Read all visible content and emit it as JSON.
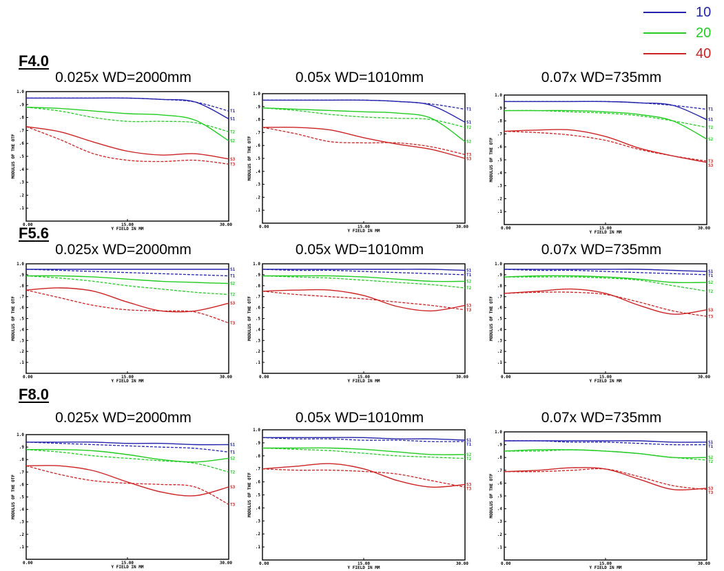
{
  "legend": [
    {
      "label": "10",
      "color": "#2222aa"
    },
    {
      "label": "20",
      "color": "#22cc22"
    },
    {
      "label": "40",
      "color": "#cc2222"
    }
  ],
  "rows": [
    {
      "title": "F4.0",
      "charts": [
        {
          "title": "0.025x WD=2000mm"
        },
        {
          "title": "0.05x WD=1010mm"
        },
        {
          "title": "0.07x WD=735mm"
        }
      ]
    },
    {
      "title": "F5.6",
      "charts": [
        {
          "title": "0.025x WD=2000mm"
        },
        {
          "title": "0.05x WD=1010mm"
        },
        {
          "title": "0.07x WD=735mm"
        }
      ]
    },
    {
      "title": "F8.0",
      "charts": [
        {
          "title": "0.025x WD=2000mm"
        },
        {
          "title": "0.05x WD=1010mm"
        },
        {
          "title": "0.07x WD=735mm"
        }
      ]
    }
  ],
  "axes": {
    "ylabel": "MODULUS OF THE OTF",
    "xlabel": "Y FIELD IN  MM",
    "yticks": [
      "1.0",
      ".9",
      ".8",
      ".7",
      ".6",
      ".5",
      ".4",
      ".3",
      ".2",
      ".1"
    ],
    "xticks": [
      "0.00",
      "15.00",
      "30.00"
    ]
  },
  "chart_data": [
    {
      "type": "line",
      "title": "0.025x WD=2000mm",
      "group": "F4.0",
      "xlabel": "Y FIELD IN  MM",
      "ylabel": "MODULUS OF THE OTF",
      "xlim": [
        0,
        30
      ],
      "ylim": [
        0,
        1
      ],
      "x": [
        0,
        5,
        10,
        15,
        20,
        25,
        30
      ],
      "series": [
        {
          "name": "10",
          "color": "#2222aa",
          "sagittal": [
            0.95,
            0.95,
            0.95,
            0.95,
            0.94,
            0.92,
            0.79
          ],
          "tangential": [
            0.95,
            0.95,
            0.95,
            0.95,
            0.94,
            0.92,
            0.85
          ],
          "labels": [
            "S1",
            "T1"
          ]
        },
        {
          "name": "20",
          "color": "#22cc22",
          "sagittal": [
            0.88,
            0.87,
            0.85,
            0.83,
            0.82,
            0.78,
            0.62
          ],
          "tangential": [
            0.88,
            0.85,
            0.8,
            0.77,
            0.77,
            0.76,
            0.69
          ],
          "labels": [
            "S2",
            "T2"
          ]
        },
        {
          "name": "40",
          "color": "#cc2222",
          "sagittal": [
            0.73,
            0.69,
            0.61,
            0.54,
            0.51,
            0.52,
            0.48
          ],
          "tangential": [
            0.73,
            0.63,
            0.52,
            0.47,
            0.46,
            0.47,
            0.44
          ],
          "labels": [
            "S3",
            "T3"
          ]
        }
      ]
    },
    {
      "type": "line",
      "title": "0.05x WD=1010mm",
      "group": "F4.0",
      "xlabel": "Y FIELD IN  MM",
      "ylabel": "MODULUS OF THE OTF",
      "xlim": [
        0,
        30
      ],
      "ylim": [
        0,
        1
      ],
      "x": [
        0,
        5,
        10,
        15,
        20,
        25,
        30
      ],
      "series": [
        {
          "name": "10",
          "color": "#2222aa",
          "sagittal": [
            0.95,
            0.95,
            0.95,
            0.95,
            0.94,
            0.91,
            0.78
          ],
          "tangential": [
            0.95,
            0.95,
            0.95,
            0.95,
            0.94,
            0.92,
            0.88
          ],
          "labels": [
            "S1",
            "T1"
          ]
        },
        {
          "name": "20",
          "color": "#22cc22",
          "sagittal": [
            0.89,
            0.88,
            0.87,
            0.86,
            0.85,
            0.81,
            0.63
          ],
          "tangential": [
            0.89,
            0.87,
            0.84,
            0.82,
            0.81,
            0.8,
            0.74
          ],
          "labels": [
            "S2",
            "T2"
          ]
        },
        {
          "name": "40",
          "color": "#cc2222",
          "sagittal": [
            0.74,
            0.74,
            0.72,
            0.66,
            0.61,
            0.57,
            0.5
          ],
          "tangential": [
            0.74,
            0.69,
            0.63,
            0.62,
            0.62,
            0.59,
            0.53
          ],
          "labels": [
            "S3",
            "T3"
          ]
        }
      ]
    },
    {
      "type": "line",
      "title": "0.07x WD=735mm",
      "group": "F4.0",
      "xlabel": "Y FIELD IN  MM",
      "ylabel": "MODULUS OF THE OTF",
      "xlim": [
        0,
        30
      ],
      "ylim": [
        0,
        1
      ],
      "x": [
        0,
        5,
        10,
        15,
        20,
        25,
        30
      ],
      "series": [
        {
          "name": "10",
          "color": "#2222aa",
          "sagittal": [
            0.95,
            0.95,
            0.95,
            0.95,
            0.94,
            0.92,
            0.81
          ],
          "tangential": [
            0.95,
            0.95,
            0.95,
            0.95,
            0.94,
            0.92,
            0.89
          ],
          "labels": [
            "S1",
            "T1"
          ]
        },
        {
          "name": "20",
          "color": "#22cc22",
          "sagittal": [
            0.88,
            0.88,
            0.88,
            0.87,
            0.85,
            0.8,
            0.66
          ],
          "tangential": [
            0.88,
            0.88,
            0.87,
            0.86,
            0.84,
            0.8,
            0.75
          ],
          "labels": [
            "S2",
            "T2"
          ]
        },
        {
          "name": "40",
          "color": "#cc2222",
          "sagittal": [
            0.72,
            0.73,
            0.73,
            0.68,
            0.59,
            0.53,
            0.48
          ],
          "tangential": [
            0.72,
            0.71,
            0.69,
            0.65,
            0.58,
            0.53,
            0.49
          ],
          "labels": [
            "S3",
            "T3"
          ]
        }
      ]
    },
    {
      "type": "line",
      "title": "0.025x WD=2000mm",
      "group": "F5.6",
      "xlabel": "Y FIELD IN  MM",
      "ylabel": "MODULUS OF THE OTF",
      "xlim": [
        0,
        30
      ],
      "ylim": [
        0,
        1
      ],
      "x": [
        0,
        5,
        10,
        15,
        20,
        25,
        30
      ],
      "series": [
        {
          "name": "10",
          "color": "#2222aa",
          "sagittal": [
            0.95,
            0.95,
            0.95,
            0.95,
            0.95,
            0.95,
            0.95
          ],
          "tangential": [
            0.95,
            0.94,
            0.93,
            0.92,
            0.91,
            0.9,
            0.89
          ],
          "labels": [
            "S1",
            "T1"
          ]
        },
        {
          "name": "20",
          "color": "#22cc22",
          "sagittal": [
            0.89,
            0.89,
            0.88,
            0.86,
            0.84,
            0.83,
            0.82
          ],
          "tangential": [
            0.89,
            0.87,
            0.84,
            0.8,
            0.77,
            0.74,
            0.72
          ],
          "labels": [
            "S2",
            "T2"
          ]
        },
        {
          "name": "40",
          "color": "#cc2222",
          "sagittal": [
            0.76,
            0.78,
            0.75,
            0.65,
            0.57,
            0.57,
            0.64
          ],
          "tangential": [
            0.76,
            0.69,
            0.62,
            0.58,
            0.57,
            0.56,
            0.46
          ],
          "labels": [
            "S3",
            "T3"
          ]
        }
      ]
    },
    {
      "type": "line",
      "title": "0.05x WD=1010mm",
      "group": "F5.6",
      "xlabel": "Y FIELD IN  MM",
      "ylabel": "MODULUS OF THE OTF",
      "xlim": [
        0,
        30
      ],
      "ylim": [
        0,
        1
      ],
      "x": [
        0,
        5,
        10,
        15,
        20,
        25,
        30
      ],
      "series": [
        {
          "name": "10",
          "color": "#2222aa",
          "sagittal": [
            0.95,
            0.95,
            0.95,
            0.95,
            0.95,
            0.95,
            0.94
          ],
          "tangential": [
            0.95,
            0.94,
            0.94,
            0.93,
            0.92,
            0.91,
            0.9
          ],
          "labels": [
            "S1",
            "T1"
          ]
        },
        {
          "name": "20",
          "color": "#22cc22",
          "sagittal": [
            0.89,
            0.89,
            0.89,
            0.88,
            0.86,
            0.84,
            0.84
          ],
          "tangential": [
            0.89,
            0.88,
            0.87,
            0.85,
            0.83,
            0.81,
            0.78
          ],
          "labels": [
            "S2",
            "T2"
          ]
        },
        {
          "name": "40",
          "color": "#cc2222",
          "sagittal": [
            0.75,
            0.76,
            0.76,
            0.71,
            0.61,
            0.57,
            0.62
          ],
          "tangential": [
            0.75,
            0.72,
            0.7,
            0.68,
            0.65,
            0.62,
            0.58
          ],
          "labels": [
            "S3",
            "T3"
          ]
        }
      ]
    },
    {
      "type": "line",
      "title": "0.07x WD=735mm",
      "group": "F5.6",
      "xlabel": "Y FIELD IN  MM",
      "ylabel": "MODULUS OF THE OTF",
      "xlim": [
        0,
        30
      ],
      "ylim": [
        0,
        1
      ],
      "x": [
        0,
        5,
        10,
        15,
        20,
        25,
        30
      ],
      "series": [
        {
          "name": "10",
          "color": "#2222aa",
          "sagittal": [
            0.95,
            0.95,
            0.95,
            0.95,
            0.95,
            0.94,
            0.93
          ],
          "tangential": [
            0.95,
            0.94,
            0.94,
            0.93,
            0.92,
            0.91,
            0.9
          ],
          "labels": [
            "S1",
            "T1"
          ]
        },
        {
          "name": "20",
          "color": "#22cc22",
          "sagittal": [
            0.88,
            0.89,
            0.89,
            0.88,
            0.86,
            0.83,
            0.83
          ],
          "tangential": [
            0.88,
            0.88,
            0.88,
            0.87,
            0.85,
            0.8,
            0.75
          ],
          "labels": [
            "S2",
            "T2"
          ]
        },
        {
          "name": "40",
          "color": "#cc2222",
          "sagittal": [
            0.73,
            0.75,
            0.77,
            0.73,
            0.62,
            0.54,
            0.58
          ],
          "tangential": [
            0.73,
            0.74,
            0.74,
            0.72,
            0.65,
            0.57,
            0.52
          ],
          "labels": [
            "S3",
            "T3"
          ]
        }
      ]
    },
    {
      "type": "line",
      "title": "0.025x WD=2000mm",
      "group": "F8.0",
      "xlabel": "Y FIELD IN  MM",
      "ylabel": "MODULUS OF THE OTF",
      "xlim": [
        0,
        30
      ],
      "ylim": [
        0,
        1
      ],
      "x": [
        0,
        5,
        10,
        15,
        20,
        25,
        30
      ],
      "series": [
        {
          "name": "10",
          "color": "#2222aa",
          "sagittal": [
            0.94,
            0.94,
            0.94,
            0.93,
            0.93,
            0.92,
            0.92
          ],
          "tangential": [
            0.94,
            0.93,
            0.92,
            0.91,
            0.9,
            0.89,
            0.86
          ],
          "labels": [
            "S1",
            "T1"
          ]
        },
        {
          "name": "20",
          "color": "#22cc22",
          "sagittal": [
            0.88,
            0.88,
            0.87,
            0.84,
            0.8,
            0.78,
            0.81
          ],
          "tangential": [
            0.88,
            0.86,
            0.83,
            0.81,
            0.79,
            0.77,
            0.7
          ],
          "labels": [
            "S2",
            "T2"
          ]
        },
        {
          "name": "40",
          "color": "#cc2222",
          "sagittal": [
            0.75,
            0.75,
            0.71,
            0.62,
            0.54,
            0.51,
            0.58
          ],
          "tangential": [
            0.75,
            0.68,
            0.63,
            0.61,
            0.6,
            0.58,
            0.44
          ],
          "labels": [
            "S3",
            "T3"
          ]
        }
      ]
    },
    {
      "type": "line",
      "title": "0.05x WD=1010mm",
      "group": "F8.0",
      "xlabel": "Y FIELD IN  MM",
      "ylabel": "MODULUS OF THE OTF",
      "xlim": [
        0,
        30
      ],
      "ylim": [
        0,
        1
      ],
      "x": [
        0,
        5,
        10,
        15,
        20,
        25,
        30
      ],
      "series": [
        {
          "name": "10",
          "color": "#2222aa",
          "sagittal": [
            0.94,
            0.94,
            0.94,
            0.94,
            0.93,
            0.93,
            0.92
          ],
          "tangential": [
            0.94,
            0.93,
            0.93,
            0.92,
            0.92,
            0.91,
            0.91
          ],
          "labels": [
            "S1",
            "T1"
          ]
        },
        {
          "name": "20",
          "color": "#22cc22",
          "sagittal": [
            0.86,
            0.86,
            0.86,
            0.85,
            0.83,
            0.81,
            0.81
          ],
          "tangential": [
            0.86,
            0.85,
            0.84,
            0.82,
            0.8,
            0.79,
            0.78
          ],
          "labels": [
            "S2",
            "T2"
          ]
        },
        {
          "name": "40",
          "color": "#cc2222",
          "sagittal": [
            0.7,
            0.72,
            0.74,
            0.7,
            0.61,
            0.56,
            0.58
          ],
          "tangential": [
            0.7,
            0.69,
            0.69,
            0.68,
            0.66,
            0.61,
            0.56
          ],
          "labels": [
            "S3",
            "T3"
          ]
        }
      ]
    },
    {
      "type": "line",
      "title": "0.07x WD=735mm",
      "group": "F8.0",
      "xlabel": "Y FIELD IN  MM",
      "ylabel": "MODULUS OF THE OTF",
      "xlim": [
        0,
        30
      ],
      "ylim": [
        0,
        1
      ],
      "x": [
        0,
        5,
        10,
        15,
        20,
        25,
        30
      ],
      "series": [
        {
          "name": "10",
          "color": "#2222aa",
          "sagittal": [
            0.93,
            0.93,
            0.93,
            0.93,
            0.93,
            0.92,
            0.92
          ],
          "tangential": [
            0.93,
            0.93,
            0.92,
            0.92,
            0.91,
            0.9,
            0.9
          ],
          "labels": [
            "S1",
            "T1"
          ]
        },
        {
          "name": "20",
          "color": "#22cc22",
          "sagittal": [
            0.85,
            0.86,
            0.86,
            0.85,
            0.83,
            0.8,
            0.8
          ],
          "tangential": [
            0.85,
            0.85,
            0.86,
            0.85,
            0.83,
            0.8,
            0.78
          ],
          "labels": [
            "S2",
            "T2"
          ]
        },
        {
          "name": "40",
          "color": "#cc2222",
          "sagittal": [
            0.69,
            0.7,
            0.72,
            0.71,
            0.63,
            0.55,
            0.56
          ],
          "tangential": [
            0.69,
            0.69,
            0.7,
            0.71,
            0.65,
            0.58,
            0.55
          ],
          "labels": [
            "S3",
            "T3"
          ]
        }
      ]
    }
  ]
}
